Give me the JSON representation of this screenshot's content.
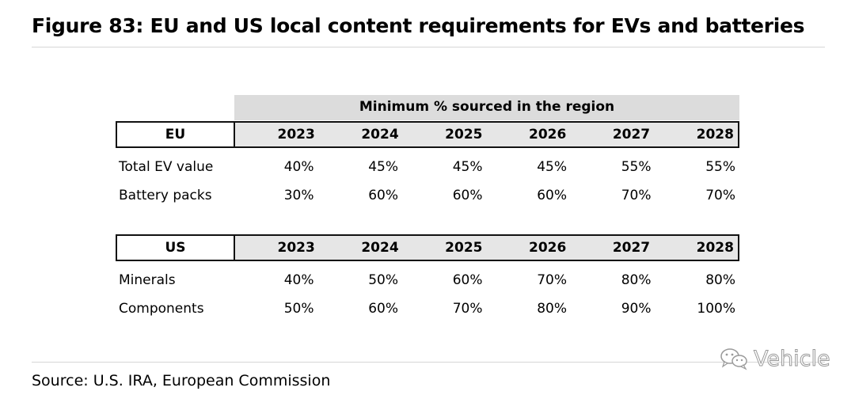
{
  "title": "Figure 83: EU and US local content requirements for EVs and batteries",
  "table_caption": "Minimum % sourced in the region",
  "years": [
    "2023",
    "2024",
    "2025",
    "2026",
    "2027",
    "2028"
  ],
  "eu": {
    "region": "EU",
    "rows": [
      {
        "label": "Total EV value",
        "values": [
          "40%",
          "45%",
          "45%",
          "45%",
          "55%",
          "55%"
        ]
      },
      {
        "label": "Battery packs",
        "values": [
          "30%",
          "60%",
          "60%",
          "60%",
          "70%",
          "70%"
        ]
      }
    ]
  },
  "us": {
    "region": "US",
    "rows": [
      {
        "label": "Minerals",
        "values": [
          "40%",
          "50%",
          "60%",
          "70%",
          "80%",
          "80%"
        ]
      },
      {
        "label": "Components",
        "values": [
          "50%",
          "60%",
          "70%",
          "80%",
          "90%",
          "100%"
        ]
      }
    ]
  },
  "source": "Source: U.S. IRA, European Commission",
  "watermark": {
    "text": "Vehicle",
    "icon": "wechat-icon"
  }
}
